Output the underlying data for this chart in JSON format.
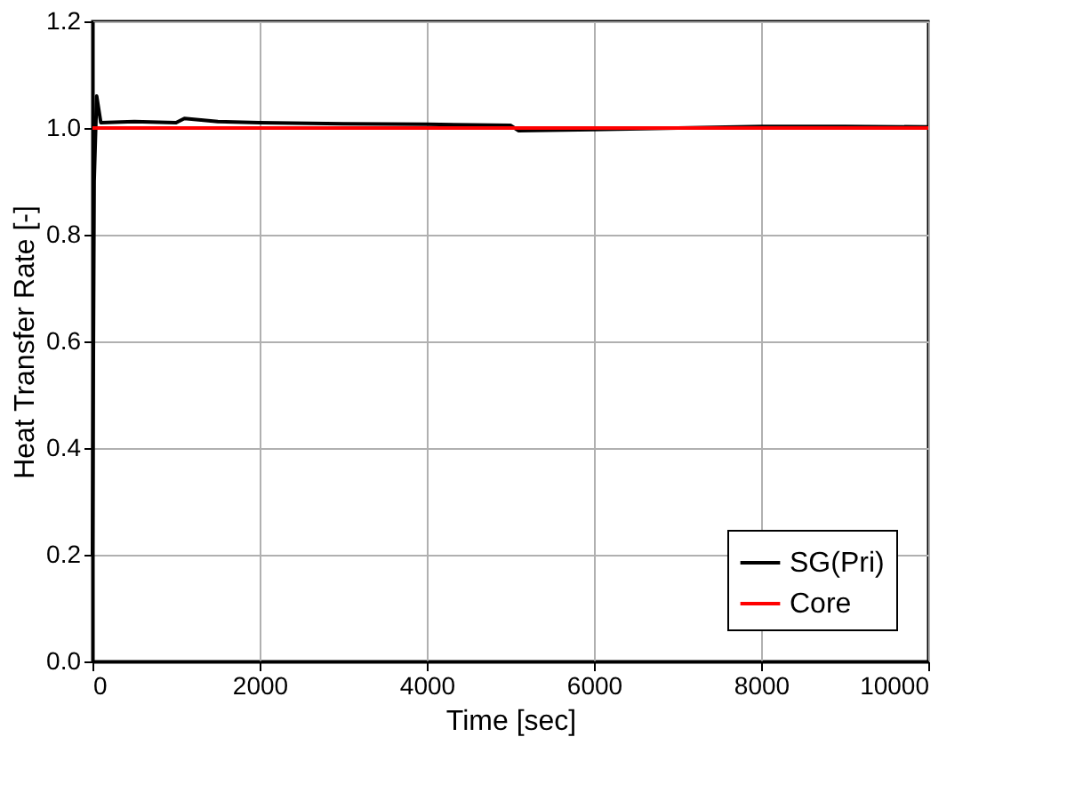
{
  "chart_data": {
    "type": "line",
    "xlabel": "Time [sec]",
    "ylabel": "Heat Transfer Rate [-]",
    "xlim": [
      0,
      10000
    ],
    "xticks": [
      0,
      2000,
      4000,
      6000,
      8000,
      10000
    ],
    "ylim": [
      0,
      1.2
    ],
    "yticks": [
      {
        "value": 0,
        "label": "0.0"
      },
      0.2,
      0.4,
      0.6,
      0.8,
      {
        "value": 1,
        "label": "1.0"
      },
      1.2
    ],
    "grid": true,
    "legend": "bottom right",
    "line_style": "solid",
    "marker": "none",
    "series": [
      {
        "name": "SG(Pri)",
        "color": "#000000",
        "x": [
          0,
          20,
          50,
          100,
          500,
          1000,
          1100,
          1500,
          2000,
          3000,
          4000,
          5000,
          5100,
          6000,
          7000,
          8000,
          9000,
          10000
        ],
        "values": [
          0.2,
          0.9,
          1.06,
          1.01,
          1.012,
          1.01,
          1.018,
          1.012,
          1.01,
          1.008,
          1.007,
          1.005,
          0.995,
          0.997,
          1.0,
          1.003,
          1.003,
          1.002
        ]
      },
      {
        "name": "Core",
        "color": "#ff0000",
        "x": [
          0,
          10000
        ],
        "values": [
          1.0,
          1.0
        ]
      }
    ]
  }
}
